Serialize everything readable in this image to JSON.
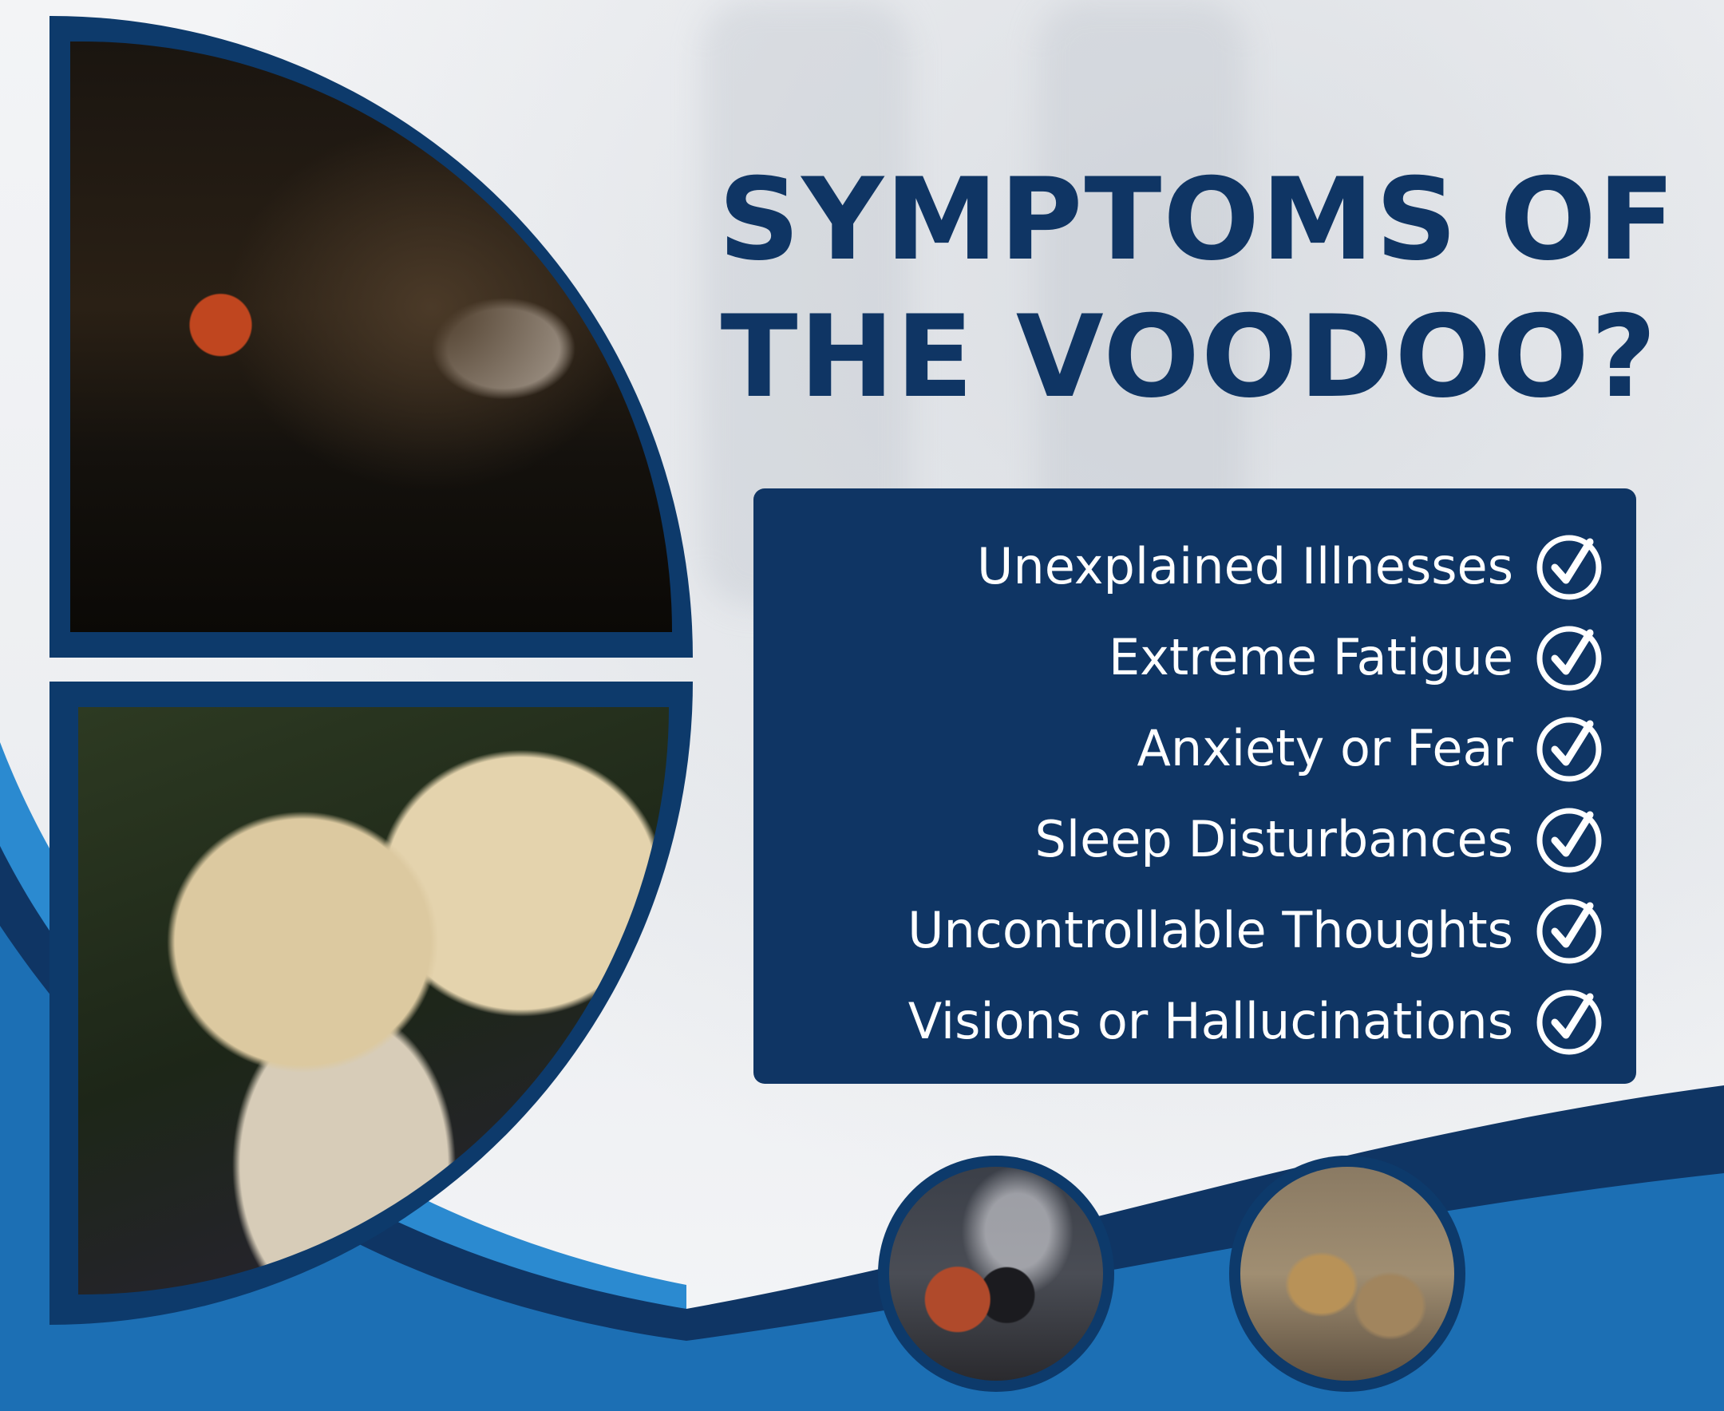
{
  "headline": {
    "line1": "SYMPTOMS OF",
    "line2": "THE VOODOO?"
  },
  "symptoms": [
    "Unexplained Illnesses",
    "Extreme Fatigue",
    "Anxiety or Fear",
    "Sleep Disturbances",
    "Uncontrollable Thoughts",
    "Visions or Hallucinations"
  ],
  "colors": {
    "navy": "#0f3564",
    "blue": "#1c6fb4",
    "light_blue": "#2b8ad0",
    "background": "#eef0f3"
  },
  "icons": {
    "check": "check-circle-icon"
  }
}
